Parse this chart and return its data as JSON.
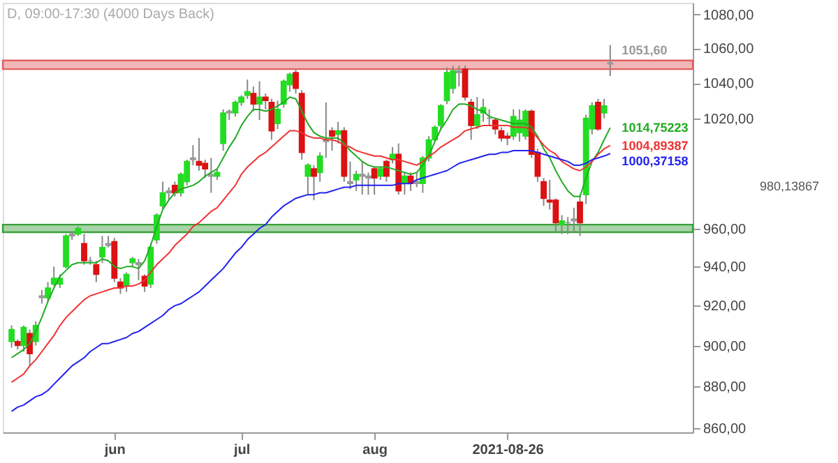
{
  "chart_data": {
    "type": "candlestick",
    "title": "D, 09:00-17:30 (4000 Days Back)",
    "categories": [
      null,
      null,
      null,
      null,
      null,
      null,
      null,
      null,
      null,
      null,
      null,
      null,
      null,
      null,
      null,
      null,
      null,
      "jun",
      null,
      null,
      null,
      null,
      null,
      null,
      null,
      null,
      null,
      null,
      null,
      null,
      null,
      null,
      null,
      null,
      null,
      null,
      null,
      null,
      "jul",
      null,
      null,
      null,
      null,
      null,
      null,
      null,
      null,
      null,
      null,
      null,
      null,
      null,
      null,
      null,
      null,
      null,
      null,
      null,
      null,
      null,
      "aug",
      null,
      null,
      null,
      null,
      null,
      null,
      null,
      null,
      null,
      null,
      null,
      null,
      null,
      null,
      null,
      null,
      null,
      null,
      null,
      null,
      null,
      "2021-08-26",
      null,
      null,
      null,
      null,
      null,
      null,
      null,
      null,
      null,
      null,
      null,
      null,
      null,
      null,
      null,
      null,
      null
    ],
    "ohlc": [
      [
        902,
        910,
        899,
        908
      ],
      [
        902,
        903,
        898,
        900
      ],
      [
        900,
        910,
        897,
        909
      ],
      [
        906,
        908,
        890,
        896
      ],
      [
        902,
        912,
        900,
        910
      ],
      [
        924,
        928,
        921,
        925
      ],
      [
        924,
        932,
        922,
        929
      ],
      [
        931,
        940,
        930,
        934
      ],
      [
        931,
        936,
        929,
        934
      ],
      [
        940,
        957,
        939,
        956
      ],
      [
        956,
        958,
        954,
        957
      ],
      [
        957,
        961,
        956,
        960
      ],
      [
        952,
        957,
        941,
        943
      ],
      [
        943,
        945,
        941,
        943
      ],
      [
        941,
        943,
        932,
        936
      ],
      [
        945,
        956,
        942,
        950
      ],
      [
        951,
        956,
        950,
        952
      ],
      [
        953,
        955,
        932,
        934
      ],
      [
        932,
        934,
        926,
        929
      ],
      [
        930,
        937,
        927,
        936
      ],
      [
        942,
        945,
        940,
        944
      ],
      [
        941,
        944,
        933,
        942
      ],
      [
        935,
        936,
        927,
        930
      ],
      [
        931,
        952,
        929,
        950
      ],
      [
        954,
        968,
        952,
        967
      ],
      [
        972,
        985,
        970,
        979
      ],
      [
        979,
        982,
        975,
        980
      ],
      [
        983,
        985,
        977,
        979
      ],
      [
        979,
        990,
        977,
        989
      ],
      [
        985,
        997,
        983,
        996
      ],
      [
        997,
        1005,
        994,
        998
      ],
      [
        996,
        1009,
        991,
        994
      ],
      [
        995,
        997,
        987,
        992
      ],
      [
        988,
        998,
        979,
        989
      ],
      [
        988,
        992,
        986,
        990
      ],
      [
        1006,
        1025,
        1002,
        1023
      ],
      [
        1023,
        1025,
        1019,
        1024
      ],
      [
        1023,
        1030,
        1021,
        1029
      ],
      [
        1029,
        1033,
        1027,
        1032
      ],
      [
        1033,
        1042,
        1031,
        1035
      ],
      [
        1034,
        1038,
        1024,
        1028
      ],
      [
        1028,
        1041,
        1019,
        1032
      ],
      [
        1032,
        1034,
        1025,
        1030
      ],
      [
        1029,
        1031,
        1008,
        1013
      ],
      [
        1017,
        1030,
        1014,
        1025
      ],
      [
        1028,
        1042,
        1026,
        1041
      ],
      [
        1039,
        1046,
        1035,
        1045
      ],
      [
        1046,
        1048,
        1034,
        1037
      ],
      [
        1034,
        1036,
        997,
        1001
      ],
      [
        988,
        995,
        978,
        994
      ],
      [
        992,
        994,
        975,
        988
      ],
      [
        990,
        1001,
        985,
        999
      ],
      [
        1007,
        1029,
        998,
        1008
      ],
      [
        1013,
        1015,
        1002,
        1010
      ],
      [
        1011,
        1018,
        1006,
        1013
      ],
      [
        1013,
        1015,
        985,
        988
      ],
      [
        984,
        996,
        981,
        985
      ],
      [
        986,
        991,
        980,
        989
      ],
      [
        988,
        996,
        978,
        989
      ],
      [
        987,
        990,
        978,
        988
      ],
      [
        992,
        993,
        978,
        987
      ],
      [
        988,
        993,
        986,
        992
      ],
      [
        996,
        997,
        985,
        988
      ],
      [
        997,
        1004,
        995,
        1000
      ],
      [
        1000,
        1006,
        978,
        980
      ],
      [
        984,
        990,
        978,
        988
      ],
      [
        988,
        990,
        980,
        984
      ],
      [
        984,
        990,
        982,
        985
      ],
      [
        984,
        999,
        979,
        998
      ],
      [
        998,
        1010,
        996,
        1008
      ],
      [
        1008,
        1016,
        1007,
        1015
      ],
      [
        1016,
        1028,
        1014,
        1027
      ],
      [
        1030,
        1049,
        1028,
        1046
      ],
      [
        1037,
        1050,
        1034,
        1047
      ],
      [
        1046,
        1050,
        1038,
        1047
      ],
      [
        1048,
        1050,
        1030,
        1032
      ],
      [
        1029,
        1031,
        1008,
        1016
      ],
      [
        1016,
        1032,
        1014,
        1022
      ],
      [
        1023,
        1031,
        1018,
        1026
      ],
      [
        1020,
        1025,
        1016,
        1020
      ],
      [
        1019,
        1020,
        1011,
        1014
      ],
      [
        1013,
        1015,
        1007,
        1009
      ],
      [
        1010,
        1012,
        1005,
        1009
      ],
      [
        1010,
        1025,
        1008,
        1021
      ],
      [
        1012,
        1025,
        1007,
        1019
      ],
      [
        1010,
        1025,
        1008,
        1024
      ],
      [
        1024,
        1025,
        998,
        1000
      ],
      [
        1001,
        1003,
        985,
        988
      ],
      [
        985,
        987,
        972,
        976
      ],
      [
        975,
        986,
        970,
        974
      ],
      [
        975,
        976,
        958,
        963
      ],
      [
        962,
        967,
        957,
        964
      ],
      [
        963,
        966,
        957,
        963
      ],
      [
        964,
        971,
        958,
        965
      ],
      [
        974,
        978,
        956,
        963
      ],
      [
        978,
        1022,
        973,
        1020
      ],
      [
        1014,
        1029,
        1011,
        1027
      ],
      [
        1029,
        1031,
        1013,
        1014
      ],
      [
        1023,
        1031,
        1020,
        1027
      ],
      [
        1051,
        1062,
        1044,
        1051.6
      ]
    ],
    "colors": [
      "#22dd22",
      "#dd1111",
      "#22dd22",
      "#dd1111",
      "#22dd22",
      "#999999",
      "#22dd22",
      "#22dd22",
      "#22dd22",
      "#22dd22",
      "#999999",
      "#22dd22",
      "#dd1111",
      "#999999",
      "#dd1111",
      "#22dd22",
      "#999999",
      "#dd1111",
      "#dd1111",
      "#22dd22",
      "#22dd22",
      "#999999",
      "#dd1111",
      "#22dd22",
      "#22dd22",
      "#22dd22",
      "#999999",
      "#dd1111",
      "#22dd22",
      "#22dd22",
      "#999999",
      "#dd1111",
      "#dd1111",
      "#999999",
      "#22dd22",
      "#22dd22",
      "#999999",
      "#22dd22",
      "#22dd22",
      "#22dd22",
      "#dd1111",
      "#22dd22",
      "#dd1111",
      "#dd1111",
      "#22dd22",
      "#22dd22",
      "#22dd22",
      "#dd1111",
      "#dd1111",
      "#22dd22",
      "#dd1111",
      "#22dd22",
      "#999999",
      "#dd1111",
      "#22dd22",
      "#dd1111",
      "#999999",
      "#22dd22",
      "#999999",
      "#999999",
      "#dd1111",
      "#22dd22",
      "#dd1111",
      "#22dd22",
      "#dd1111",
      "#22dd22",
      "#dd1111",
      "#999999",
      "#22dd22",
      "#22dd22",
      "#22dd22",
      "#22dd22",
      "#22dd22",
      "#22dd22",
      "#999999",
      "#dd1111",
      "#dd1111",
      "#22dd22",
      "#22dd22",
      "#999999",
      "#dd1111",
      "#dd1111",
      "#dd1111",
      "#22dd22",
      "#22dd22",
      "#22dd22",
      "#dd1111",
      "#dd1111",
      "#dd1111",
      "#dd1111",
      "#dd1111",
      "#22dd22",
      "#999999",
      "#999999",
      "#dd1111",
      "#22dd22",
      "#22dd22",
      "#dd1111",
      "#22dd22",
      "#999999"
    ],
    "series": [
      {
        "type": "line",
        "color": "#22aa22",
        "value_labels": [
          null,
          null,
          null,
          null,
          null,
          null,
          null,
          null,
          null,
          null,
          null,
          null,
          null,
          null,
          null,
          null,
          null,
          null,
          null,
          null,
          null,
          null,
          null,
          null,
          null,
          null,
          null,
          null,
          null,
          null,
          null,
          null,
          null,
          null,
          null,
          null,
          null,
          null,
          null,
          null,
          null,
          null,
          null,
          null,
          null,
          null,
          null,
          null,
          null,
          null,
          null,
          null,
          null,
          null,
          null,
          null,
          null,
          null,
          null,
          null,
          null,
          null,
          null,
          null,
          null,
          null,
          null,
          null,
          null,
          null,
          null,
          null,
          null,
          null,
          null,
          null,
          null,
          null,
          null,
          null,
          null,
          null,
          null,
          null,
          null,
          null,
          null,
          null,
          null,
          null,
          null,
          null,
          null,
          null,
          null,
          null,
          null,
          null,
          null,
          "1014,75223"
        ],
        "values": [
          894,
          896,
          898,
          901,
          907,
          914,
          922,
          929,
          935,
          938,
          941,
          942,
          942,
          942,
          942,
          944,
          943,
          940,
          939,
          940,
          940,
          939,
          943,
          951,
          961,
          970,
          975,
          979,
          981,
          982,
          983,
          985,
          988,
          990,
          992,
          998,
          1004,
          1009,
          1016,
          1021,
          1025,
          1025,
          1024,
          1025,
          1027,
          1029,
          1032,
          1031,
          1024,
          1017,
          1012,
          1010,
          1009,
          1009,
          1009,
          1006,
          1002,
          999,
          996,
          994,
          993,
          993,
          993,
          992,
          991,
          990,
          989,
          990,
          994,
          999,
          1007,
          1014,
          1019,
          1025,
          1028,
          1028,
          1027,
          1025,
          1024,
          1021,
          1020,
          1019,
          1018,
          1017,
          1017,
          1017,
          1015,
          1010,
          1003,
          998,
          991,
          985,
          980,
          977,
          977,
          987,
          996,
          1001,
          1008,
          1014.75
        ]
      },
      {
        "type": "line",
        "color": "#ee3333",
        "value_labels": [
          null,
          null,
          null,
          null,
          null,
          null,
          null,
          null,
          null,
          null,
          null,
          null,
          null,
          null,
          null,
          null,
          null,
          null,
          null,
          null,
          null,
          null,
          null,
          null,
          null,
          null,
          null,
          null,
          null,
          null,
          null,
          null,
          null,
          null,
          null,
          null,
          null,
          null,
          null,
          null,
          null,
          null,
          null,
          null,
          null,
          null,
          null,
          null,
          null,
          null,
          null,
          null,
          null,
          null,
          null,
          null,
          null,
          null,
          null,
          null,
          null,
          null,
          null,
          null,
          null,
          null,
          null,
          null,
          null,
          null,
          null,
          null,
          null,
          null,
          null,
          null,
          null,
          null,
          null,
          null,
          null,
          null,
          null,
          null,
          null,
          null,
          null,
          null,
          null,
          null,
          null,
          null,
          null,
          null,
          null,
          null,
          null,
          null,
          null,
          "1004,89387"
        ],
        "values": [
          882,
          884,
          886,
          890,
          893,
          897,
          901,
          905,
          910,
          914,
          917,
          920,
          923,
          925,
          926,
          927,
          928,
          929,
          929,
          930,
          930,
          931,
          933,
          937,
          941,
          944,
          947,
          951,
          954,
          957,
          961,
          963,
          966,
          969,
          971,
          975,
          979,
          983,
          989,
          993,
          996,
          999,
          1001,
          1004,
          1007,
          1010,
          1013,
          1013,
          1012,
          1010,
          1009,
          1009,
          1008,
          1008,
          1007,
          1005,
          1004,
          1002,
          1001,
          1000,
          999,
          999,
          998,
          997,
          997,
          996,
          995,
          994,
          996,
          999,
          1001,
          1004,
          1006,
          1008,
          1010,
          1013,
          1014,
          1015,
          1016,
          1016,
          1016,
          1016,
          1016,
          1015,
          1015,
          1015,
          1013,
          1009,
          1005,
          1002,
          1000,
          996,
          994,
          992,
          991,
          993,
          996,
          1000,
          1003,
          1004.89
        ]
      },
      {
        "type": "line",
        "color": "#2222ee",
        "value_labels": [
          null,
          null,
          null,
          null,
          null,
          null,
          null,
          null,
          null,
          null,
          null,
          null,
          null,
          null,
          null,
          null,
          null,
          null,
          null,
          null,
          null,
          null,
          null,
          null,
          null,
          null,
          null,
          null,
          null,
          null,
          null,
          null,
          null,
          null,
          null,
          null,
          null,
          null,
          null,
          null,
          null,
          null,
          null,
          null,
          null,
          null,
          null,
          null,
          null,
          null,
          null,
          null,
          null,
          null,
          null,
          null,
          null,
          null,
          null,
          null,
          null,
          null,
          null,
          null,
          null,
          null,
          null,
          null,
          null,
          null,
          null,
          null,
          null,
          null,
          null,
          null,
          null,
          null,
          null,
          null,
          null,
          null,
          null,
          null,
          null,
          null,
          null,
          null,
          null,
          null,
          null,
          null,
          null,
          null,
          null,
          null,
          null,
          null,
          null,
          "1000,37158"
        ],
        "values": [
          868,
          870,
          871,
          873,
          875,
          876,
          878,
          881,
          884,
          887,
          890,
          892,
          894,
          897,
          899,
          901,
          901,
          902,
          903,
          904,
          906,
          907,
          909,
          911,
          913,
          915,
          918,
          920,
          921,
          923,
          925,
          927,
          930,
          933,
          936,
          939,
          943,
          947,
          950,
          954,
          957,
          960,
          962,
          966,
          969,
          972,
          974,
          976,
          977,
          978,
          978,
          979,
          979,
          980,
          981,
          982,
          982,
          983,
          983,
          983,
          983,
          983,
          983,
          983,
          984,
          984,
          984,
          986,
          987,
          988,
          989,
          990,
          991,
          993,
          995,
          996,
          997,
          998,
          999,
          1000,
          1000,
          1001,
          1001,
          1002,
          1002,
          1002,
          1002,
          1001,
          1000,
          999,
          998,
          997,
          996,
          994,
          994,
          995,
          997,
          998,
          999,
          1000.37
        ]
      }
    ],
    "bands": [
      {
        "axis": "y",
        "from": 1048,
        "to": 1053,
        "color": "#e06060"
      },
      {
        "axis": "y",
        "from": 958,
        "to": 962,
        "color": "#3aa03a"
      }
    ],
    "value_labels": [
      null,
      null,
      null,
      null,
      null,
      null,
      null,
      null,
      null,
      null,
      null,
      null,
      null,
      null,
      null,
      null,
      null,
      null,
      null,
      null,
      null,
      null,
      null,
      null,
      null,
      null,
      null,
      null,
      null,
      null,
      null,
      null,
      null,
      null,
      null,
      null,
      null,
      null,
      null,
      null,
      null,
      null,
      null,
      null,
      null,
      null,
      null,
      null,
      null,
      null,
      null,
      null,
      null,
      null,
      null,
      null,
      null,
      null,
      null,
      null,
      null,
      null,
      null,
      null,
      null,
      null,
      null,
      null,
      null,
      null,
      null,
      null,
      null,
      null,
      null,
      null,
      null,
      null,
      null,
      null,
      null,
      null,
      null,
      null,
      null,
      null,
      null,
      null,
      null,
      null,
      null,
      null,
      null,
      null,
      null,
      null,
      null,
      null,
      null,
      "1051,60"
    ],
    "annotations": [
      "980,13867"
    ],
    "log": true,
    "ylim": [
      858,
      1087
    ],
    "yticks": [
      {
        "value": 860,
        "label": "860,00"
      },
      {
        "value": 880,
        "label": "880,00"
      },
      {
        "value": 900,
        "label": "900,00"
      },
      {
        "value": 920,
        "label": "920,00"
      },
      {
        "value": 940,
        "label": "940,00"
      },
      {
        "value": 960,
        "label": "960,00"
      },
      {
        "value": 1020,
        "label": "1020,00"
      },
      {
        "value": 1040,
        "label": "1040,00"
      },
      {
        "value": 1060,
        "label": "1060,00"
      },
      {
        "value": 1080,
        "label": "1080,00"
      }
    ],
    "grid": false,
    "legend": false
  }
}
